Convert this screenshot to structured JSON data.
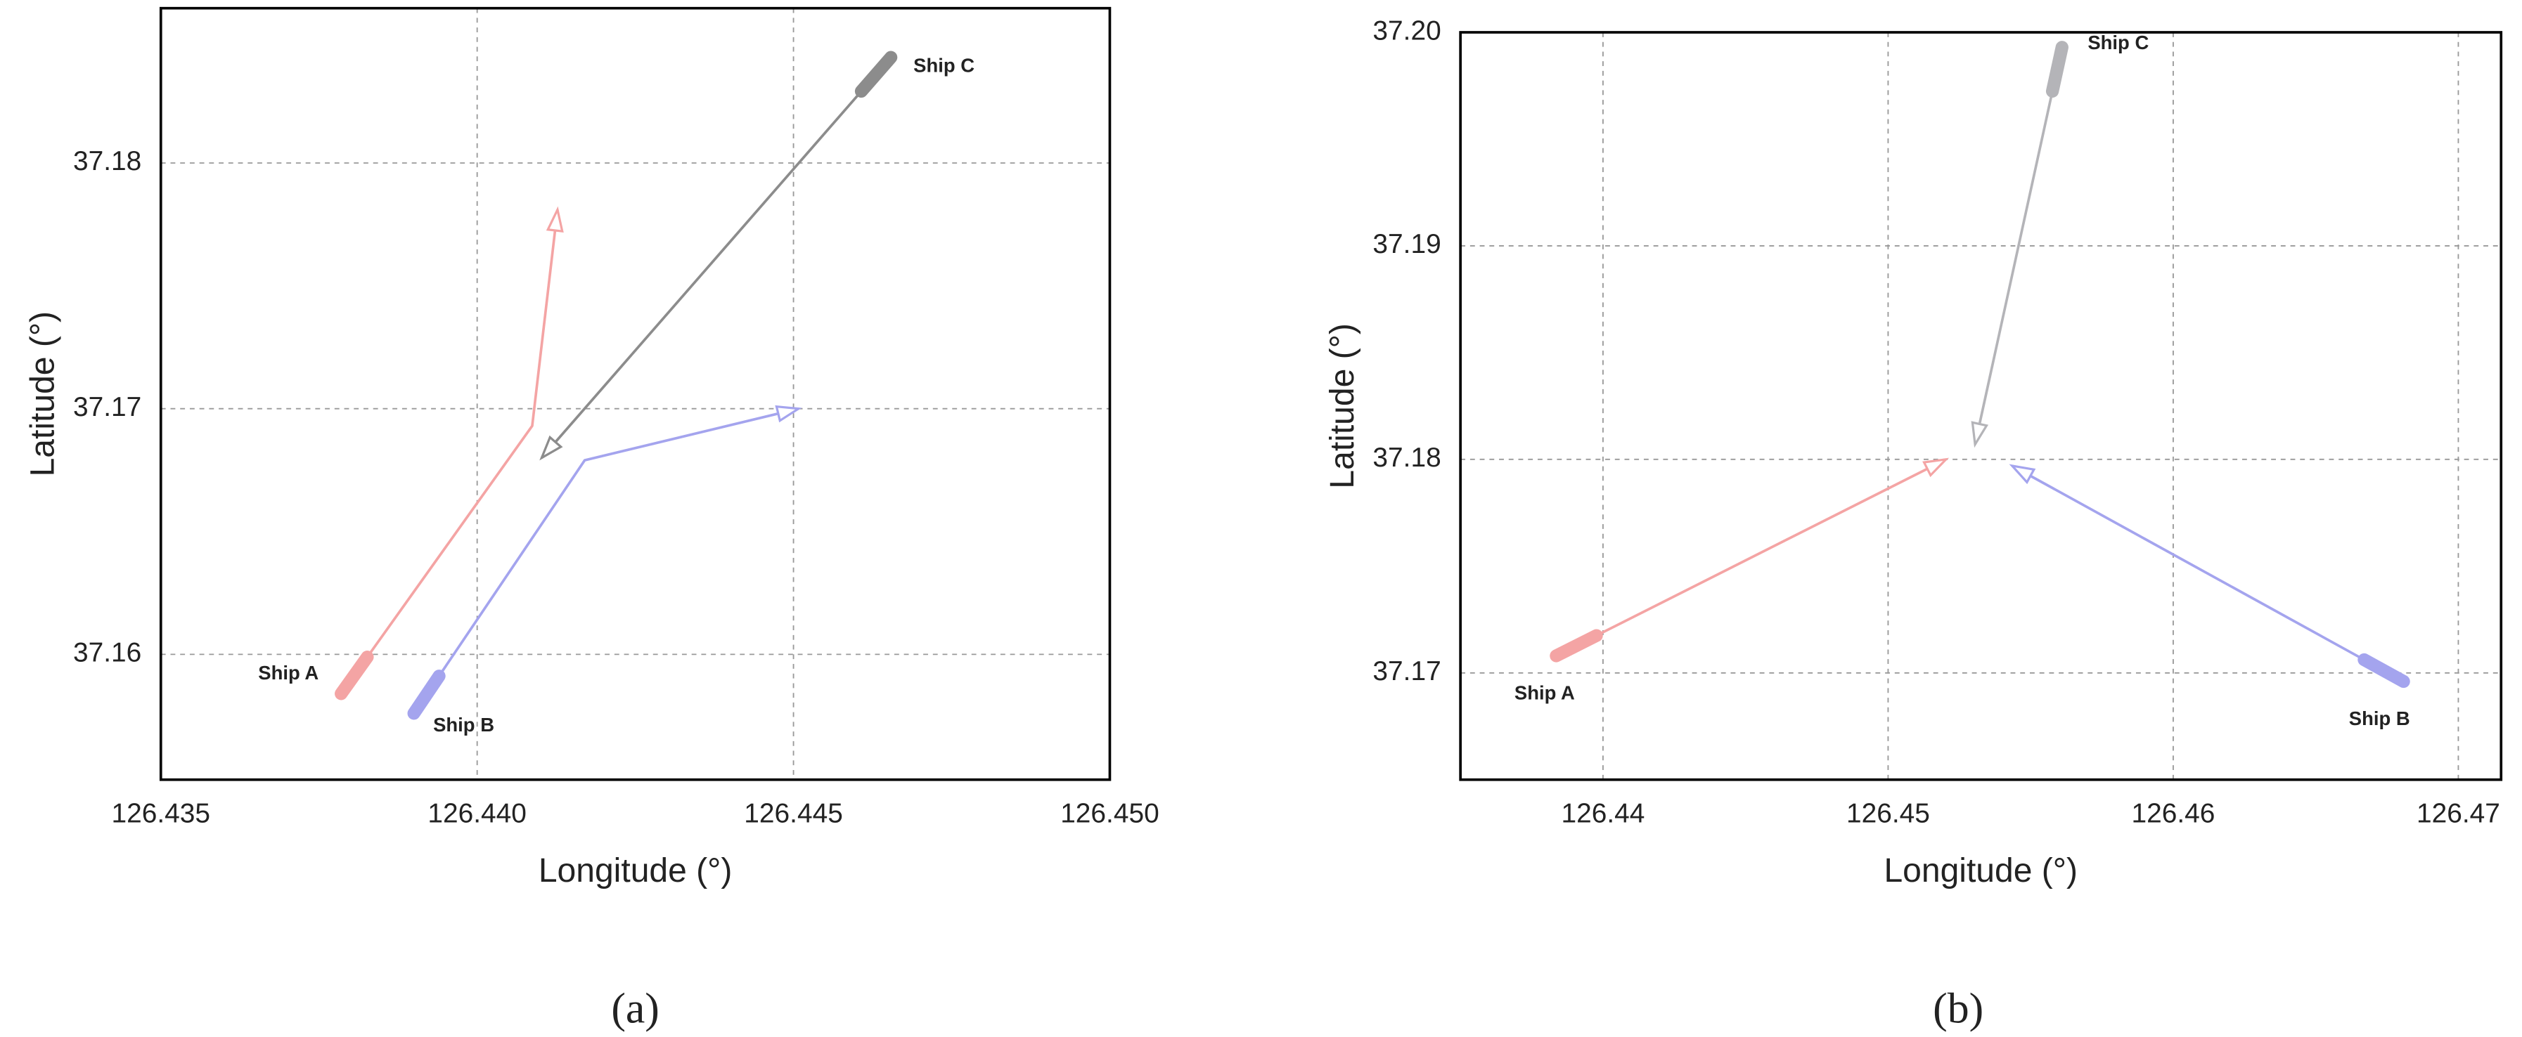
{
  "chart_data": [
    {
      "type": "line",
      "panel_label": "(a)",
      "x_label": "Longitude (°)",
      "y_label": "Latitude (°)",
      "xlim": [
        126.435,
        126.45
      ],
      "ylim": [
        37.1549,
        37.1863
      ],
      "xticks": [
        126.435,
        {
          "value": 126.44,
          "label": "126.440"
        },
        126.445,
        {
          "value": 126.45,
          "label": "126.450"
        }
      ],
      "yticks": [
        37.16,
        37.17,
        37.18
      ],
      "grid": true,
      "series": [
        {
          "name": "Ship A",
          "color": "#f4a4a4",
          "x": [
            126.43785,
            126.44087,
            126.44127
          ],
          "values": [
            37.1584,
            37.1693,
            37.1781
          ]
        },
        {
          "name": "Ship B",
          "color": "#a4a4ee",
          "x": [
            126.439,
            126.4417,
            126.44508
          ],
          "values": [
            37.1576,
            37.1679,
            37.17
          ]
        },
        {
          "name": "Ship C",
          "color": "#8c8c8c",
          "x": [
            126.44654,
            126.44102
          ],
          "values": [
            37.1843,
            37.168
          ]
        }
      ]
    },
    {
      "type": "line",
      "panel_label": "(b)",
      "x_label": "Longitude (°)",
      "y_label": "Latitude (°)",
      "xlim": [
        126.435,
        126.4715
      ],
      "ylim": [
        37.165,
        37.2
      ],
      "xticks": [
        126.44,
        126.45,
        126.46,
        126.47
      ],
      "yticks": [
        37.17,
        37.18,
        37.19,
        {
          "value": 37.2,
          "label": "37.20"
        }
      ],
      "grid": true,
      "series": [
        {
          "name": "Ship A",
          "color": "#f4a4a4",
          "x": [
            126.43836,
            126.45203
          ],
          "values": [
            37.1708,
            37.18
          ]
        },
        {
          "name": "Ship B",
          "color": "#a4a4ee",
          "x": [
            126.46808,
            126.45435
          ],
          "values": [
            37.1696,
            37.1797
          ]
        },
        {
          "name": "Ship C",
          "color": "#b4b4b8",
          "x": [
            126.4561,
            126.45305
          ],
          "values": [
            37.1993,
            37.1807
          ]
        }
      ]
    }
  ]
}
